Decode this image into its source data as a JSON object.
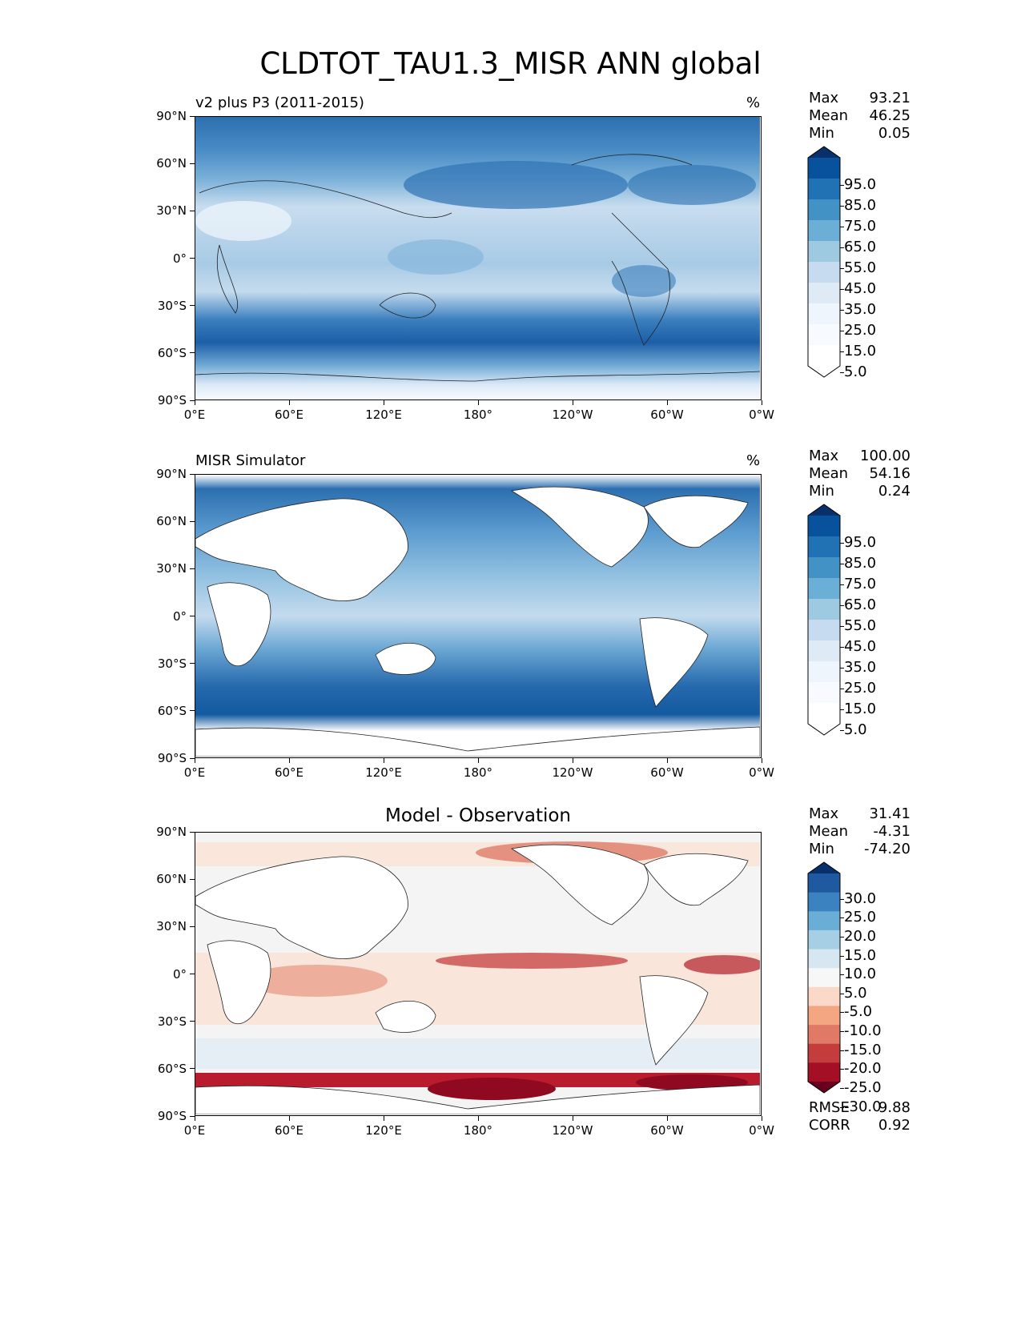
{
  "title": "CLDTOT_TAU1.3_MISR ANN global",
  "x_ticks": [
    "0°E",
    "60°E",
    "120°E",
    "180°",
    "120°W",
    "60°W",
    "0°W"
  ],
  "y_ticks": [
    "90°N",
    "60°N",
    "30°N",
    "0°",
    "30°S",
    "60°S",
    "90°S"
  ],
  "panels": [
    {
      "label": "v2 plus P3 (2011-2015)",
      "unit": "%",
      "stats": [
        {
          "name": "Max",
          "value": "93.21"
        },
        {
          "name": "Mean",
          "value": "46.25"
        },
        {
          "name": "Min",
          "value": "0.05"
        }
      ],
      "colorbar": {
        "labels": [
          "95.0",
          "85.0",
          "75.0",
          "65.0",
          "55.0",
          "45.0",
          "35.0",
          "25.0",
          "15.0",
          "5.0"
        ],
        "colors": [
          "#08306b",
          "#08519c",
          "#2171b5",
          "#4292c6",
          "#6baed6",
          "#9ecae1",
          "#c6dbef",
          "#deebf7",
          "#eff5fc",
          "#f7fbff",
          "#ffffff",
          "#ffffff"
        ]
      }
    },
    {
      "label": "MISR Simulator",
      "unit": "%",
      "stats": [
        {
          "name": "Max",
          "value": "100.00"
        },
        {
          "name": "Mean",
          "value": "54.16"
        },
        {
          "name": "Min",
          "value": "0.24"
        }
      ],
      "colorbar": {
        "labels": [
          "95.0",
          "85.0",
          "75.0",
          "65.0",
          "55.0",
          "45.0",
          "35.0",
          "25.0",
          "15.0",
          "5.0"
        ],
        "colors": [
          "#08306b",
          "#08519c",
          "#2171b5",
          "#4292c6",
          "#6baed6",
          "#9ecae1",
          "#c6dbef",
          "#deebf7",
          "#eff5fc",
          "#f7fbff",
          "#ffffff",
          "#ffffff"
        ]
      }
    },
    {
      "label": "Model - Observation",
      "unit": "",
      "stats": [
        {
          "name": "Max",
          "value": "31.41"
        },
        {
          "name": "Mean",
          "value": "-4.31"
        },
        {
          "name": "Min",
          "value": "-74.20"
        }
      ],
      "extra_stats": [
        {
          "name": "RMSE",
          "value": "9.88"
        },
        {
          "name": "CORR",
          "value": "0.92"
        }
      ],
      "colorbar": {
        "labels": [
          "30.0",
          "25.0",
          "20.0",
          "15.0",
          "10.0",
          "5.0",
          "-5.0",
          "-10.0",
          "-15.0",
          "-20.0",
          "-25.0",
          "-30.0"
        ],
        "colors": [
          "#08306b",
          "#1f5aa0",
          "#3a82c0",
          "#6aaed6",
          "#a6cee4",
          "#d6e7f2",
          "#f7f7f7",
          "#fbd9c8",
          "#f4a582",
          "#e07a66",
          "#c43c3c",
          "#a50f26",
          "#67001f"
        ]
      }
    }
  ]
}
